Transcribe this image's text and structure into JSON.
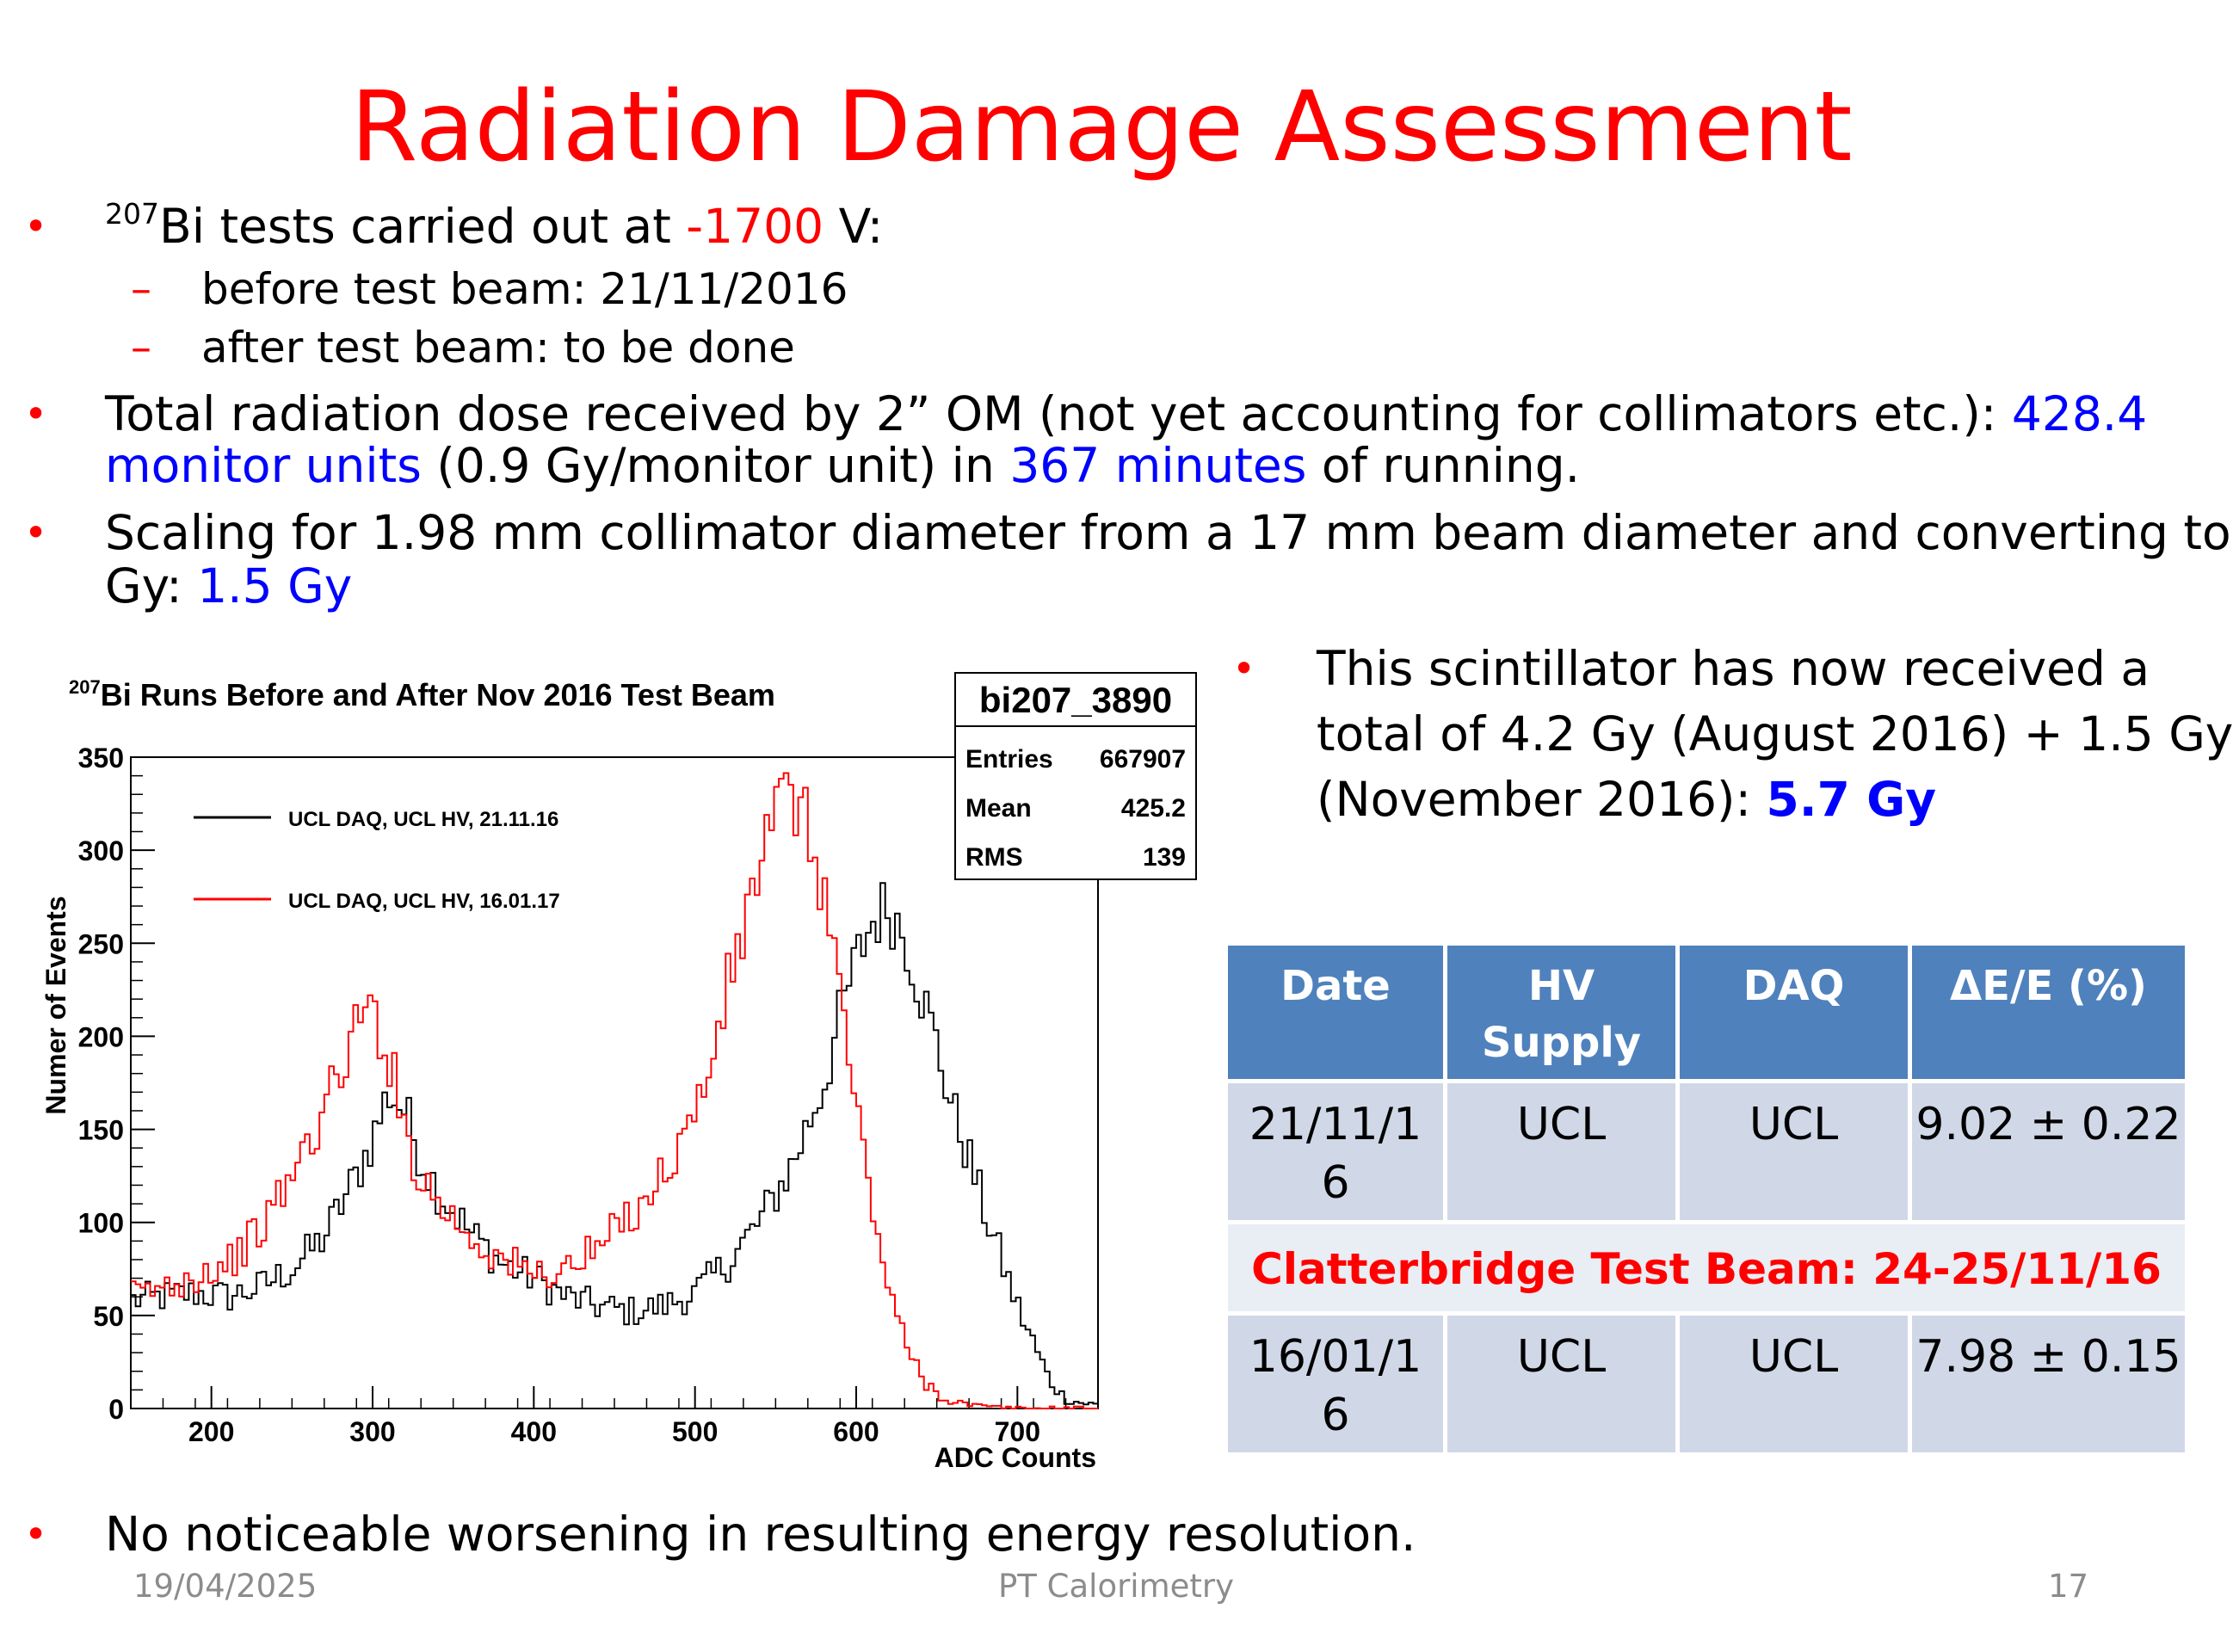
{
  "slide": {
    "title": "Radiation Damage Assessment",
    "bullet1": {
      "isotope_mass": "207",
      "text_a": "Bi tests carried out at ",
      "voltage": "-1700",
      "text_b": " V:"
    },
    "sub1": "before test beam: 21/11/2016",
    "sub2": "after test beam: to be done",
    "bullet2": {
      "line1_a": "Total radiation dose received by 2” OM (not yet accounting for collimators etc.): ",
      "line1_b": "428.4",
      "line2_a": "monitor units",
      "line2_b": " (0.9 Gy/monitor unit) in ",
      "line2_c": "367 minutes",
      "line2_d": " of running."
    },
    "bullet3": {
      "line1": "Scaling for 1.98 mm collimator diameter  from a 17 mm beam diameter and converting to",
      "line2_a": "Gy: ",
      "line2_b": "1.5 Gy"
    },
    "right_bullet": {
      "line1": "This scintillator has now received a",
      "line2": "total of 4.2 Gy (August 2016) + 1.5 Gy",
      "line3_a": "(November 2016): ",
      "line3_b": "5.7 Gy"
    },
    "bottom_bullet": "No noticeable worsening in resulting energy resolution."
  },
  "footer": {
    "date": "19/04/2025",
    "center": "PT Calorimetry",
    "page": "17"
  },
  "table": {
    "headers": {
      "date": "Date",
      "hv_line1": "HV",
      "hv_line2": "Supply",
      "daq": "DAQ",
      "res": "ΔE/E (%)"
    },
    "row1": {
      "date_line1": "21/11/1",
      "date_line2": "6",
      "hv": "UCL",
      "daq": "UCL",
      "res": "9.02 ± 0.22"
    },
    "separator": "Clatterbridge Test Beam: 24-25/11/16",
    "row2": {
      "date_line1": "16/01/1",
      "date_line2": "6",
      "hv": "UCL",
      "daq": "UCL",
      "res": "7.98 ± 0.15"
    }
  },
  "chart_data": {
    "type": "line",
    "title_sup": "207",
    "title": "Bi Runs Before and After Nov 2016 Test Beam",
    "xlabel": "ADC Counts",
    "ylabel": "Numer of Events",
    "xlim": [
      150,
      750
    ],
    "ylim": [
      0,
      350
    ],
    "x_ticks": [
      "200",
      "300",
      "400",
      "500",
      "600",
      "700"
    ],
    "y_ticks": [
      "0",
      "50",
      "100",
      "150",
      "200",
      "250",
      "300",
      "350"
    ],
    "stats": {
      "name": "bi207_3890",
      "entries_label": "Entries",
      "entries": "667907",
      "mean_label": "Mean",
      "mean": "425.2",
      "rms_label": "RMS",
      "rms": "139"
    },
    "series": [
      {
        "name": "UCL DAQ, UCL HV, 21.11.16",
        "color": "#000000",
        "x": [
          150,
          170,
          190,
          210,
          230,
          250,
          270,
          290,
          300,
          310,
          320,
          330,
          340,
          360,
          380,
          400,
          420,
          440,
          460,
          480,
          500,
          520,
          540,
          560,
          580,
          590,
          600,
          610,
          620,
          630,
          640,
          650,
          660,
          670,
          680,
          690,
          700,
          710,
          720,
          730,
          740,
          750
        ],
        "y": [
          58,
          60,
          62,
          60,
          65,
          75,
          92,
          125,
          145,
          170,
          160,
          135,
          118,
          95,
          78,
          70,
          60,
          55,
          52,
          55,
          62,
          78,
          100,
          130,
          175,
          210,
          240,
          262,
          270,
          255,
          225,
          195,
          160,
          135,
          105,
          80,
          55,
          35,
          15,
          5,
          3,
          2
        ]
      },
      {
        "name": "UCL DAQ, UCL HV, 16.01.17",
        "color": "#ff0000",
        "x": [
          150,
          170,
          190,
          210,
          230,
          250,
          270,
          290,
          300,
          310,
          320,
          330,
          340,
          360,
          380,
          400,
          420,
          440,
          460,
          480,
          500,
          510,
          520,
          530,
          540,
          550,
          560,
          570,
          580,
          590,
          600,
          610,
          620,
          630,
          640,
          650,
          660,
          670,
          680,
          700,
          720,
          750
        ],
        "y": [
          60,
          65,
          72,
          78,
          95,
          125,
          160,
          205,
          215,
          190,
          150,
          125,
          112,
          93,
          80,
          72,
          75,
          85,
          105,
          125,
          158,
          185,
          225,
          255,
          295,
          318,
          330,
          310,
          280,
          225,
          160,
          110,
          65,
          35,
          18,
          8,
          4,
          2,
          1,
          0,
          0,
          0
        ]
      }
    ]
  }
}
